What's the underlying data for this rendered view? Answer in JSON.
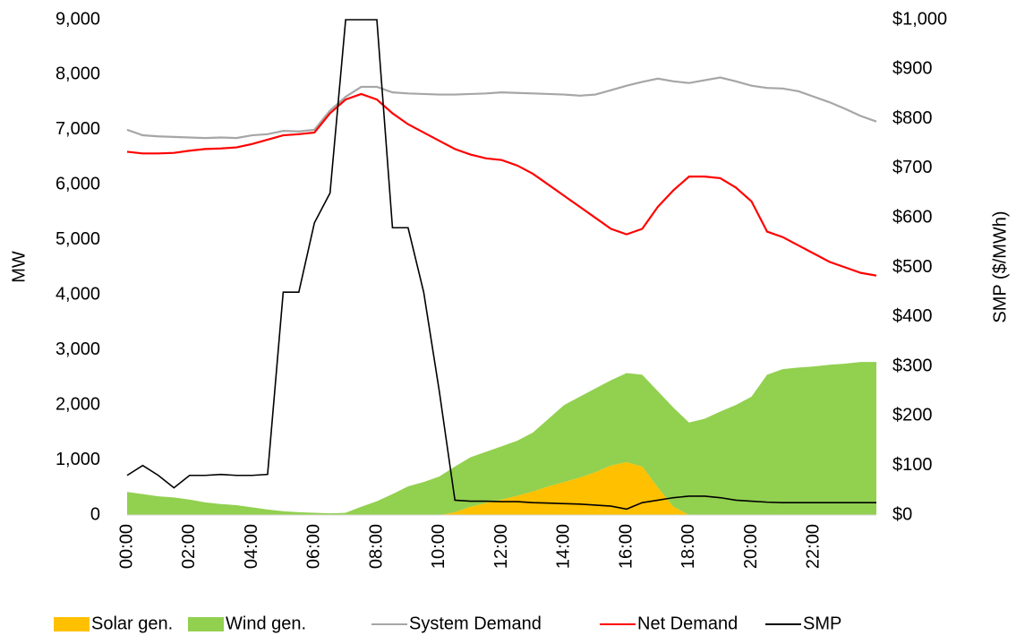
{
  "chart_data": {
    "type": "combo",
    "y_label": "MW",
    "y2_label": "SMP ($/MWh)",
    "categories": [
      "00:00",
      null,
      null,
      null,
      "02:00",
      null,
      null,
      null,
      "04:00",
      null,
      null,
      null,
      "06:00",
      null,
      null,
      null,
      "08:00",
      null,
      null,
      null,
      "10:00",
      null,
      null,
      null,
      "12:00",
      null,
      null,
      null,
      "14:00",
      null,
      null,
      null,
      "16:00",
      null,
      null,
      null,
      "18:00",
      null,
      null,
      null,
      "20:00",
      null,
      null,
      null,
      "22:00",
      null,
      null,
      null,
      null
    ],
    "ylim": [
      0,
      9000
    ],
    "yticks": [
      0,
      {
        "value": 1000,
        "label": "1,000"
      },
      {
        "value": 2000,
        "label": "2,000"
      },
      {
        "value": 3000,
        "label": "3,000"
      },
      {
        "value": 4000,
        "label": "4,000"
      },
      {
        "value": 5000,
        "label": "5,000"
      },
      {
        "value": 6000,
        "label": "6,000"
      },
      {
        "value": 7000,
        "label": "7,000"
      },
      {
        "value": 8000,
        "label": "8,000"
      },
      {
        "value": 9000,
        "label": "9,000"
      }
    ],
    "y2lim": [
      0,
      1000
    ],
    "y2ticks": [
      {
        "value": 0,
        "label": "$0"
      },
      {
        "value": 100,
        "label": "$100"
      },
      {
        "value": 200,
        "label": "$200"
      },
      {
        "value": 300,
        "label": "$300"
      },
      {
        "value": 400,
        "label": "$400"
      },
      {
        "value": 500,
        "label": "$500"
      },
      {
        "value": 600,
        "label": "$600"
      },
      {
        "value": 700,
        "label": "$700"
      },
      {
        "value": 800,
        "label": "$800"
      },
      {
        "value": 900,
        "label": "$900"
      },
      {
        "value": 1000,
        "label": "$1,000"
      }
    ],
    "series": [
      {
        "name": "Solar gen.",
        "kind": "area",
        "color": "#ffc000",
        "values": [
          0,
          0,
          0,
          0,
          0,
          0,
          0,
          0,
          0,
          0,
          0,
          0,
          0,
          0,
          0,
          0,
          0,
          0,
          0,
          0,
          0,
          50,
          150,
          220,
          280,
          350,
          430,
          520,
          600,
          680,
          780,
          900,
          960,
          880,
          500,
          150,
          0,
          0,
          0,
          0,
          0,
          0,
          0,
          0,
          0,
          0,
          0,
          0,
          0
        ]
      },
      {
        "name": "Wind gen.",
        "kind": "area",
        "color": "#92d050",
        "values": [
          420,
          380,
          340,
          320,
          280,
          230,
          200,
          180,
          140,
          100,
          70,
          50,
          40,
          30,
          40,
          150,
          250,
          380,
          520,
          600,
          700,
          830,
          900,
          930,
          970,
          1000,
          1070,
          1230,
          1400,
          1470,
          1520,
          1550,
          1620,
          1670,
          1750,
          1800,
          1680,
          1750,
          1880,
          2000,
          2150,
          2550,
          2650,
          2680,
          2700,
          2730,
          2750,
          2780,
          2780
        ]
      },
      {
        "name": "System Demand",
        "kind": "line",
        "color": "#a6a6a6",
        "values": [
          7000,
          6900,
          6880,
          6870,
          6860,
          6850,
          6860,
          6850,
          6900,
          6920,
          6980,
          6970,
          7000,
          7350,
          7600,
          7780,
          7780,
          7680,
          7660,
          7650,
          7640,
          7640,
          7650,
          7660,
          7680,
          7670,
          7660,
          7650,
          7640,
          7620,
          7640,
          7720,
          7800,
          7870,
          7930,
          7880,
          7850,
          7900,
          7950,
          7880,
          7800,
          7760,
          7750,
          7700,
          7600,
          7500,
          7380,
          7250,
          7150
        ]
      },
      {
        "name": "Net Demand",
        "kind": "line",
        "color": "#ff0000",
        "values": [
          6600,
          6570,
          6570,
          6580,
          6620,
          6650,
          6660,
          6680,
          6740,
          6820,
          6900,
          6920,
          6950,
          7300,
          7550,
          7650,
          7550,
          7300,
          7100,
          6950,
          6800,
          6650,
          6550,
          6480,
          6450,
          6350,
          6200,
          6000,
          5800,
          5600,
          5400,
          5200,
          5100,
          5200,
          5600,
          5900,
          6150,
          6150,
          6120,
          5950,
          5700,
          5150,
          5050,
          4900,
          4750,
          4600,
          4500,
          4400,
          4350
        ]
      },
      {
        "name": "SMP",
        "kind": "line",
        "axis": "y2",
        "color": "#000000",
        "values": [
          80,
          100,
          80,
          55,
          80,
          80,
          82,
          80,
          80,
          82,
          450,
          450,
          590,
          650,
          1000,
          1000,
          1000,
          580,
          580,
          450,
          250,
          30,
          28,
          28,
          27,
          27,
          25,
          24,
          23,
          22,
          20,
          18,
          12,
          25,
          30,
          35,
          38,
          38,
          35,
          30,
          28,
          26,
          25,
          25,
          25,
          25,
          25,
          25,
          25
        ]
      }
    ],
    "stacked": true
  }
}
